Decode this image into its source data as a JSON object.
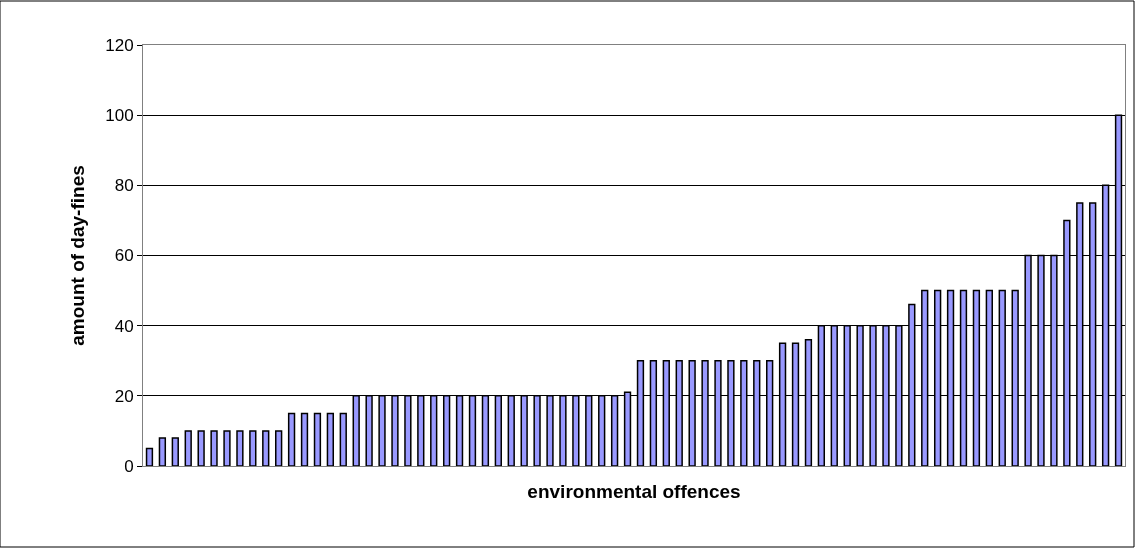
{
  "chart_data": {
    "type": "bar",
    "xlabel": "environmental offences",
    "ylabel": "amount of day-fines",
    "categories": [
      null,
      null,
      null,
      null,
      null,
      null,
      null,
      null,
      null,
      null,
      null,
      null,
      null,
      null,
      null,
      null,
      null,
      null,
      null,
      null,
      null,
      null,
      null,
      null,
      null,
      null,
      null,
      null,
      null,
      null,
      null,
      null,
      null,
      null,
      null,
      null,
      null,
      null,
      null,
      null,
      null,
      null,
      null,
      null,
      null,
      null,
      null,
      null,
      null,
      null,
      null,
      null,
      null,
      null,
      null,
      null,
      null,
      null,
      null,
      null,
      null,
      null,
      null,
      null,
      null,
      null,
      null,
      null,
      null,
      null,
      null,
      null,
      null,
      null,
      null,
      null
    ],
    "values": [
      5,
      8,
      8,
      10,
      10,
      10,
      10,
      10,
      10,
      10,
      10,
      15,
      15,
      15,
      15,
      15,
      20,
      20,
      20,
      20,
      20,
      20,
      20,
      20,
      20,
      20,
      20,
      20,
      20,
      20,
      20,
      20,
      20,
      20,
      20,
      20,
      20,
      21,
      30,
      30,
      30,
      30,
      30,
      30,
      30,
      30,
      30,
      30,
      30,
      35,
      35,
      36,
      40,
      40,
      40,
      40,
      40,
      40,
      40,
      46,
      50,
      50,
      50,
      50,
      50,
      50,
      50,
      50,
      60,
      60,
      60,
      70,
      75,
      75,
      80,
      100
    ],
    "color": "#9999ff",
    "ylim": [
      0,
      120
    ],
    "yticks": [
      0,
      20,
      40,
      60,
      80,
      100,
      120
    ],
    "grid": "y",
    "legend": false
  }
}
